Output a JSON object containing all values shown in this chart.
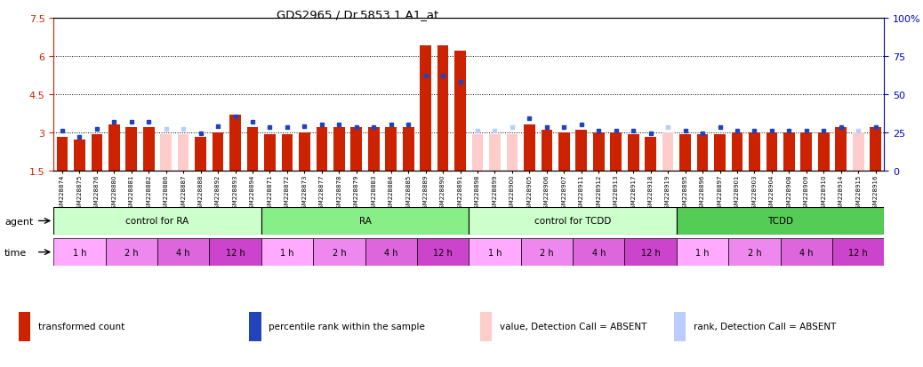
{
  "title": "GDS2965 / Dr.5853.1.A1_at",
  "ylim_left": [
    1.5,
    7.5
  ],
  "yticks_left": [
    1.5,
    3.0,
    4.5,
    6.0,
    7.5
  ],
  "ytick_labels_left": [
    "1.5",
    "3",
    "4.5",
    "6",
    "7.5"
  ],
  "yticks_right_pct": [
    0,
    25,
    50,
    75,
    100
  ],
  "ytick_labels_right": [
    "0",
    "25",
    "50",
    "75",
    "100%"
  ],
  "hlines": [
    3.0,
    4.5,
    6.0
  ],
  "samples": [
    "GSM228874",
    "GSM228875",
    "GSM228876",
    "GSM228880",
    "GSM228881",
    "GSM228882",
    "GSM228886",
    "GSM228887",
    "GSM228888",
    "GSM228892",
    "GSM228893",
    "GSM228894",
    "GSM228871",
    "GSM228872",
    "GSM228873",
    "GSM228877",
    "GSM228878",
    "GSM228879",
    "GSM228883",
    "GSM228884",
    "GSM228885",
    "GSM228889",
    "GSM228890",
    "GSM228891",
    "GSM228898",
    "GSM228899",
    "GSM228900",
    "GSM228905",
    "GSM228906",
    "GSM228907",
    "GSM228911",
    "GSM228912",
    "GSM228913",
    "GSM228917",
    "GSM228918",
    "GSM228919",
    "GSM228895",
    "GSM228896",
    "GSM228897",
    "GSM228901",
    "GSM228903",
    "GSM228904",
    "GSM228908",
    "GSM228909",
    "GSM228910",
    "GSM228914",
    "GSM228915",
    "GSM228916"
  ],
  "red_values": [
    2.8,
    2.7,
    2.9,
    3.3,
    3.2,
    3.2,
    2.9,
    2.9,
    2.8,
    3.0,
    3.7,
    3.2,
    2.9,
    2.9,
    3.0,
    3.2,
    3.2,
    3.2,
    3.2,
    3.2,
    3.2,
    6.4,
    6.4,
    6.2,
    2.9,
    2.9,
    2.9,
    3.3,
    3.1,
    3.0,
    3.1,
    3.0,
    3.0,
    2.9,
    2.8,
    3.0,
    2.9,
    2.9,
    2.9,
    3.0,
    3.0,
    3.0,
    3.0,
    3.0,
    3.0,
    3.2,
    3.0,
    3.2
  ],
  "blue_values_pct": [
    26,
    22,
    27,
    32,
    32,
    32,
    27,
    27,
    24,
    29,
    35,
    32,
    28,
    28,
    29,
    30,
    30,
    28,
    28,
    30,
    30,
    62,
    62,
    58,
    26,
    26,
    28,
    34,
    28,
    28,
    30,
    26,
    26,
    26,
    24,
    28,
    26,
    24,
    28,
    26,
    26,
    26,
    26,
    26,
    26,
    28,
    26,
    28
  ],
  "absent_red_idx": [
    6,
    7,
    24,
    25,
    26,
    35,
    46
  ],
  "absent_blue_idx": [
    6,
    7,
    24,
    25,
    26,
    35,
    46
  ],
  "agents": [
    {
      "label": "control for RA",
      "start": 0,
      "end": 12,
      "color": "#ccffcc"
    },
    {
      "label": "RA",
      "start": 12,
      "end": 24,
      "color": "#88ee88"
    },
    {
      "label": "control for TCDD",
      "start": 24,
      "end": 36,
      "color": "#ccffcc"
    },
    {
      "label": "TCDD",
      "start": 36,
      "end": 48,
      "color": "#55cc55"
    }
  ],
  "time_blocks": [
    {
      "label": "1 h",
      "start": 0,
      "end": 3,
      "color": "#ffaaff"
    },
    {
      "label": "2 h",
      "start": 3,
      "end": 6,
      "color": "#ee88ee"
    },
    {
      "label": "4 h",
      "start": 6,
      "end": 9,
      "color": "#dd66dd"
    },
    {
      "label": "12 h",
      "start": 9,
      "end": 12,
      "color": "#cc44cc"
    },
    {
      "label": "1 h",
      "start": 12,
      "end": 15,
      "color": "#ffaaff"
    },
    {
      "label": "2 h",
      "start": 15,
      "end": 18,
      "color": "#ee88ee"
    },
    {
      "label": "4 h",
      "start": 18,
      "end": 21,
      "color": "#dd66dd"
    },
    {
      "label": "12 h",
      "start": 21,
      "end": 24,
      "color": "#cc44cc"
    },
    {
      "label": "1 h",
      "start": 24,
      "end": 27,
      "color": "#ffaaff"
    },
    {
      "label": "2 h",
      "start": 27,
      "end": 30,
      "color": "#ee88ee"
    },
    {
      "label": "4 h",
      "start": 30,
      "end": 33,
      "color": "#dd66dd"
    },
    {
      "label": "12 h",
      "start": 33,
      "end": 36,
      "color": "#cc44cc"
    },
    {
      "label": "1 h",
      "start": 36,
      "end": 39,
      "color": "#ffaaff"
    },
    {
      "label": "2 h",
      "start": 39,
      "end": 42,
      "color": "#ee88ee"
    },
    {
      "label": "4 h",
      "start": 42,
      "end": 45,
      "color": "#dd66dd"
    },
    {
      "label": "12 h",
      "start": 45,
      "end": 48,
      "color": "#cc44cc"
    }
  ],
  "red_color": "#cc2200",
  "pink_color": "#ffcccc",
  "blue_color": "#2244bb",
  "lightblue_color": "#bbccff",
  "bg_color": "#ffffff",
  "left_axis_color": "#cc2200",
  "right_axis_color": "#0000cc",
  "legend_items": [
    {
      "color": "#cc2200",
      "label": "transformed count"
    },
    {
      "color": "#2244bb",
      "label": "percentile rank within the sample"
    },
    {
      "color": "#ffcccc",
      "label": "value, Detection Call = ABSENT"
    },
    {
      "color": "#bbccff",
      "label": "rank, Detection Call = ABSENT"
    }
  ]
}
